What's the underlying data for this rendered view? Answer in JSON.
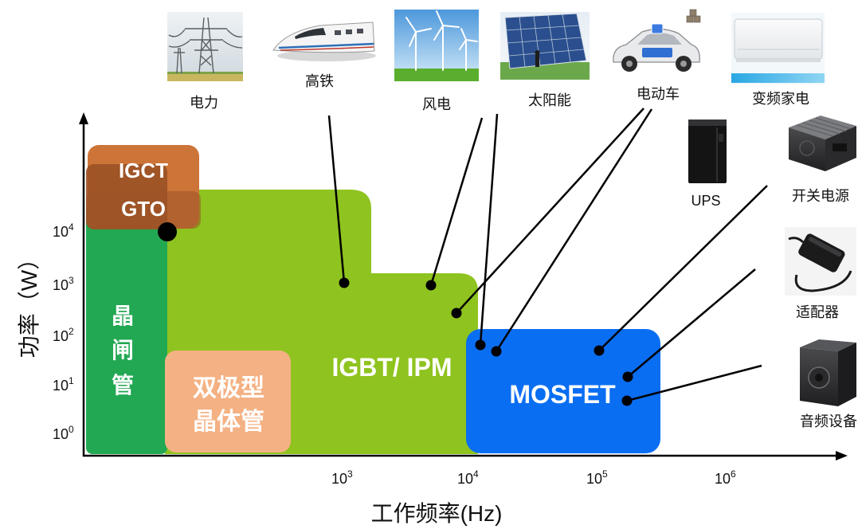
{
  "axes": {
    "x_label": "工作频率(Hz)",
    "y_label": "功率（W）",
    "x_ticks": [
      {
        "base": "10",
        "exp": "3"
      },
      {
        "base": "10",
        "exp": "4"
      },
      {
        "base": "10",
        "exp": "5"
      },
      {
        "base": "10",
        "exp": "6"
      }
    ],
    "y_ticks": [
      {
        "base": "10",
        "exp": "4"
      },
      {
        "base": "10",
        "exp": "3"
      },
      {
        "base": "10",
        "exp": "2"
      },
      {
        "base": "10",
        "exp": "1"
      },
      {
        "base": "10",
        "exp": "0"
      }
    ]
  },
  "devices": {
    "igct": "IGCT",
    "gto": "GTO",
    "thyristor": [
      "晶",
      "闸",
      "管"
    ],
    "igbt_ipm": "IGBT/ IPM",
    "bipolar_transistor": [
      "双极型",
      "晶体管"
    ],
    "mosfet": "MOSFET"
  },
  "applications": {
    "power_grid": "电力",
    "high_speed_rail": "高铁",
    "wind_power": "风电",
    "solar": "太阳能",
    "electric_vehicle": "电动车",
    "inverter_appliance": "变频家电",
    "ups": "UPS",
    "switching_power_supply": "开关电源",
    "adapter": "适配器",
    "audio_equipment": "音频设备"
  },
  "colors": {
    "thyristor": "#22a853",
    "igbt_ipm": "#8fc31f",
    "igct": "#cd7438",
    "gto": "#9c5326",
    "bipolar_transistor": "#f4b183",
    "mosfet": "#0a6ef2"
  },
  "icons": {
    "power_grid": "power-pylon-image",
    "high_speed_rail": "bullet-train-image",
    "wind_power": "wind-turbine-image",
    "solar": "solar-panel-image",
    "electric_vehicle": "electric-car-image",
    "inverter_appliance": "air-conditioner-image",
    "ups": "ups-tower-image",
    "switching_power_supply": "power-supply-unit-image",
    "adapter": "power-adapter-image",
    "audio_equipment": "speaker-box-image"
  }
}
